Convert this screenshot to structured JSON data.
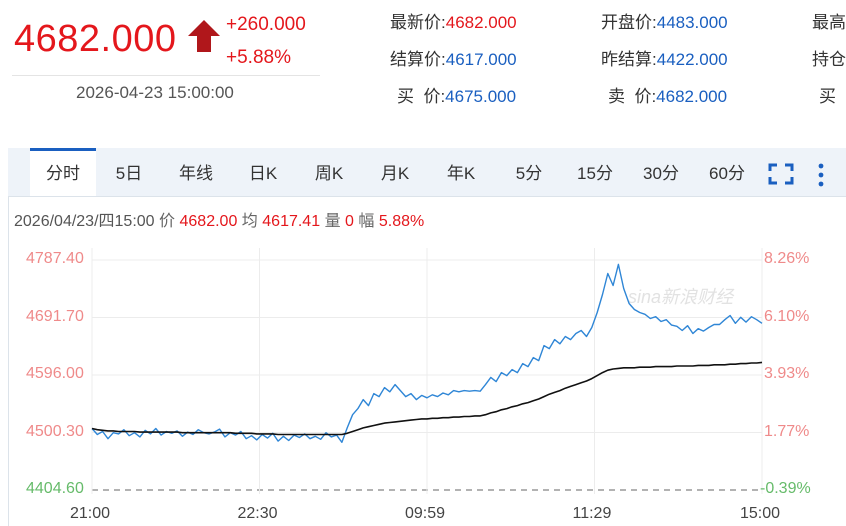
{
  "header": {
    "last_price": "4682.000",
    "change": "+260.000",
    "change_pct": "+5.88%",
    "timestamp": "2026-04-23 15:00:00",
    "arrow": "up-arrow-icon"
  },
  "quote": {
    "latest_label": "最新价:",
    "latest": "4682.000",
    "open_label": "开盘价:",
    "open": "4483.000",
    "high_label": "最高",
    "settle_label": "结算价:",
    "settle": "4617.000",
    "prev_settle_label": "昨结算:",
    "prev_settle": "4422.000",
    "oi_label": "持仓",
    "bid_label": "买  价:",
    "bid": "4675.000",
    "ask_label": "卖  价:",
    "ask": "4682.000",
    "bid_vol_label": "买"
  },
  "tabs": [
    "分时",
    "5日",
    "年线",
    "日K",
    "周K",
    "月K",
    "年K",
    "5分",
    "15分",
    "30分",
    "60分"
  ],
  "toolbar": {
    "fullscreen_icon": "fullscreen-icon",
    "more_icon": "more-vertical-icon"
  },
  "infoline": {
    "datetime": "2026/04/23/四15:00",
    "price_k": "价",
    "price_v": "4682.00",
    "avg_k": "均",
    "avg_v": "4617.41",
    "vol_k": "量",
    "vol_v": "0",
    "amp_k": "幅",
    "amp_v": "5.88%"
  },
  "watermark": "sina新浪财经",
  "colors": {
    "up": "#e4171c",
    "down": "#2aa63a",
    "price_line": "#2f86d6",
    "avg_line": "#111111",
    "accent": "#1a5fc0"
  },
  "chart_data": {
    "type": "line",
    "y_left_ticks": [
      "4787.40",
      "4691.70",
      "4596.00",
      "4500.30",
      "4404.60"
    ],
    "y_right_ticks": [
      "8.26%",
      "6.10%",
      "3.93%",
      "1.77%",
      "-0.39%"
    ],
    "x_ticks": [
      "21:00",
      "22:30",
      "09:59",
      "11:29",
      "15:00"
    ],
    "ylim": [
      4404.6,
      4787.4
    ],
    "reference_price": 4422.0,
    "series": [
      {
        "name": "价",
        "values": [
          4507,
          4497,
          4502,
          4490,
          4500,
          4498,
          4505,
          4495,
          4500,
          4493,
          4504,
          4498,
          4507,
          4496,
          4502,
          4499,
          4503,
          4494,
          4501,
          4497,
          4505,
          4500,
          4498,
          4501,
          4506,
          4493,
          4500,
          4496,
          4502,
          4490,
          4495,
          4488,
          4497,
          4491,
          4499,
          4486,
          4494,
          4487,
          4496,
          4492,
          4498,
          4490,
          4494,
          4489,
          4500,
          4493,
          4496,
          4484,
          4508,
          4530,
          4540,
          4555,
          4545,
          4565,
          4560,
          4575,
          4568,
          4580,
          4570,
          4560,
          4565,
          4555,
          4562,
          4558,
          4563,
          4560,
          4566,
          4563,
          4570,
          4568,
          4570,
          4569,
          4570,
          4569,
          4580,
          4592,
          4585,
          4600,
          4595,
          4605,
          4600,
          4615,
          4610,
          4625,
          4620,
          4645,
          4640,
          4655,
          4648,
          4660,
          4655,
          4665,
          4670,
          4660,
          4675,
          4700,
          4730,
          4765,
          4745,
          4780,
          4740,
          4715,
          4705,
          4700,
          4697,
          4690,
          4693,
          4685,
          4688,
          4679,
          4677,
          4670,
          4678,
          4665,
          4673,
          4669,
          4675,
          4680,
          4680,
          4688,
          4695,
          4682,
          4692,
          4684,
          4693,
          4688,
          4682
        ]
      },
      {
        "name": "均",
        "values": [
          4507,
          4505,
          4504,
          4503,
          4503,
          4502,
          4502,
          4502,
          4502,
          4501,
          4501,
          4501,
          4501,
          4501,
          4501,
          4501,
          4501,
          4500,
          4500,
          4500,
          4500,
          4500,
          4500,
          4500,
          4500,
          4500,
          4500,
          4499,
          4499,
          4499,
          4499,
          4498,
          4498,
          4498,
          4498,
          4497,
          4497,
          4497,
          4497,
          4497,
          4497,
          4497,
          4497,
          4497,
          4497,
          4497,
          4497,
          4497,
          4499,
          4502,
          4505,
          4508,
          4510,
          4512,
          4514,
          4516,
          4517,
          4518,
          4519,
          4520,
          4521,
          4522,
          4523,
          4523,
          4524,
          4524,
          4525,
          4525,
          4526,
          4526,
          4527,
          4527,
          4528,
          4528,
          4530,
          4533,
          4535,
          4538,
          4540,
          4543,
          4545,
          4548,
          4550,
          4553,
          4556,
          4560,
          4564,
          4567,
          4570,
          4574,
          4577,
          4580,
          4583,
          4586,
          4590,
          4595,
          4600,
          4604,
          4606,
          4607,
          4608,
          4608,
          4608,
          4609,
          4609,
          4609,
          4610,
          4610,
          4610,
          4610,
          4611,
          4611,
          4611,
          4611,
          4612,
          4612,
          4612,
          4613,
          4613,
          4613,
          4614,
          4614,
          4615,
          4615,
          4616,
          4616,
          4617
        ]
      }
    ],
    "grid": true
  }
}
